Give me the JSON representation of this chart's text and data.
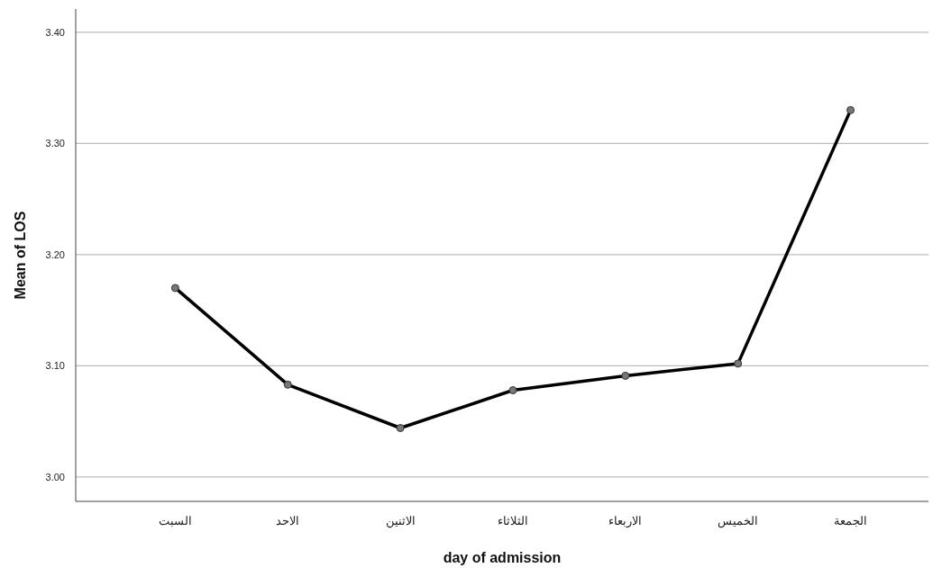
{
  "chart_data": {
    "type": "line",
    "xlabel": "day of admission",
    "ylabel": "Mean of LOS",
    "categories": [
      "السبت",
      "الاحد",
      "الاثنين",
      "الثلاثاء",
      "الاربعاء",
      "الخميس",
      "الجمعة"
    ],
    "series": [
      {
        "color": "#000000",
        "values": [
          3.17,
          3.083,
          3.044,
          3.078,
          3.091,
          3.102,
          3.33
        ]
      }
    ],
    "ylim": [
      2.978,
      3.421
    ],
    "yticks": [
      {
        "value": 3.0,
        "label": "3.00"
      },
      {
        "value": 3.1,
        "label": "3.10"
      },
      {
        "value": 3.2,
        "label": "3.20"
      },
      {
        "value": 3.3,
        "label": "3.30"
      },
      {
        "value": 3.4,
        "label": "3.40"
      }
    ],
    "grid": "y",
    "marker": "circle",
    "line_style": "solid"
  }
}
